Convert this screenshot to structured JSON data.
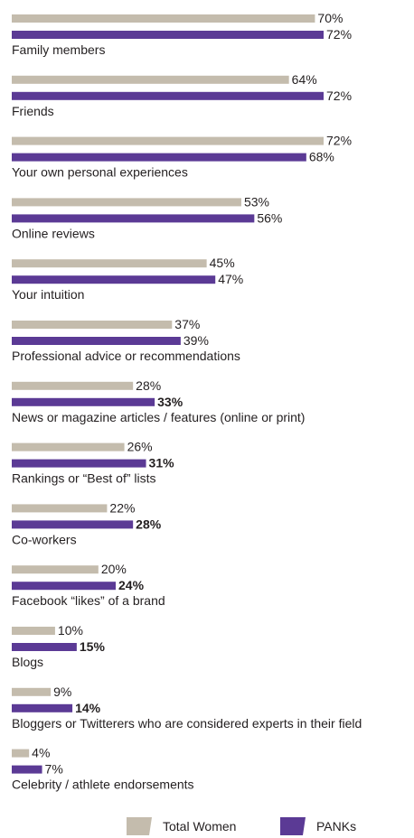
{
  "chart_data": {
    "type": "bar",
    "orientation": "horizontal",
    "title": "",
    "xlabel": "",
    "ylabel": "",
    "xlim": [
      0,
      72
    ],
    "grid": false,
    "value_suffix": "%",
    "categories": [
      "Family members",
      "Friends",
      "Your own personal experiences",
      "Online reviews",
      "Your intuition",
      "Professional advice or recommendations",
      "News or magazine articles / features (online or print)",
      "Rankings or “Best of” lists",
      "Co-workers",
      "Facebook “likes” of a brand",
      "Blogs",
      "Bloggers or Twitterers who are considered experts in their field",
      "Celebrity / athlete endorsements"
    ],
    "series": [
      {
        "name": "Total Women",
        "color": "#c4bcad",
        "values": [
          70,
          64,
          72,
          53,
          45,
          37,
          28,
          26,
          22,
          20,
          10,
          9,
          4
        ]
      },
      {
        "name": "PANKs",
        "color": "#5b3a95",
        "values": [
          72,
          72,
          68,
          56,
          47,
          39,
          33,
          31,
          28,
          24,
          15,
          14,
          7
        ],
        "bold_labels": [
          false,
          false,
          false,
          false,
          false,
          false,
          true,
          true,
          true,
          true,
          true,
          true,
          false
        ]
      }
    ],
    "legend": {
      "position": "bottom-right",
      "items": [
        {
          "label": "Total Women",
          "color": "#c4bcad"
        },
        {
          "label": "PANKs",
          "color": "#5b3a95"
        }
      ]
    }
  }
}
